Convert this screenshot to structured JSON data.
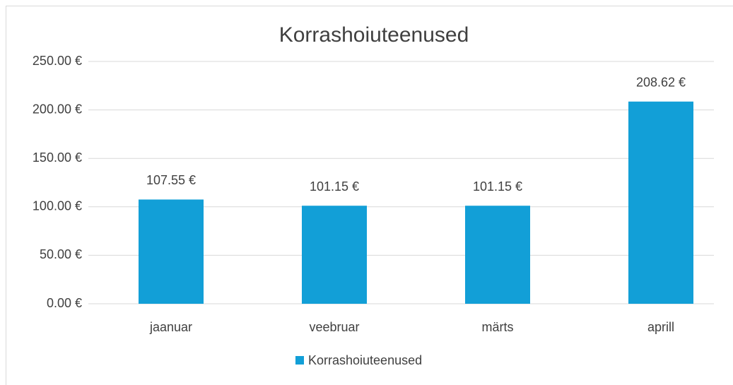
{
  "chart_data": {
    "type": "bar",
    "title": "Korrashoiuteenused",
    "categories": [
      "jaanuar",
      "veebruar",
      "märts",
      "aprill"
    ],
    "series": [
      {
        "name": "Korrashoiuteenused",
        "color": "#129fd7",
        "values": [
          107.55,
          101.15,
          101.15,
          208.62
        ],
        "value_labels": [
          "107.55 €",
          "101.15 €",
          "101.15 €",
          "208.62 €"
        ]
      }
    ],
    "ylim": [
      0,
      250
    ],
    "yticks": [
      {
        "value": 0,
        "label": "0.00 €"
      },
      {
        "value": 50,
        "label": "50.00 €"
      },
      {
        "value": 100,
        "label": "100.00 €"
      },
      {
        "value": 150,
        "label": "150.00 €"
      },
      {
        "value": 200,
        "label": "200.00 €"
      },
      {
        "value": 250,
        "label": "250.00 €"
      }
    ],
    "grid": true,
    "legend": "bottom"
  }
}
